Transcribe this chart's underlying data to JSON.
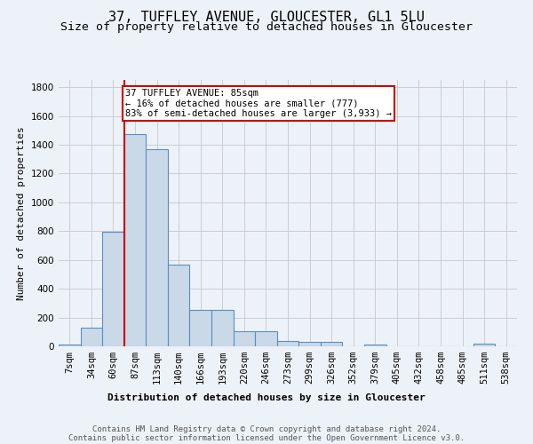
{
  "title": "37, TUFFLEY AVENUE, GLOUCESTER, GL1 5LU",
  "subtitle": "Size of property relative to detached houses in Gloucester",
  "xlabel": "Distribution of detached houses by size in Gloucester",
  "ylabel": "Number of detached properties",
  "bar_labels": [
    "7sqm",
    "34sqm",
    "60sqm",
    "87sqm",
    "113sqm",
    "140sqm",
    "166sqm",
    "193sqm",
    "220sqm",
    "246sqm",
    "273sqm",
    "299sqm",
    "326sqm",
    "352sqm",
    "379sqm",
    "405sqm",
    "432sqm",
    "458sqm",
    "485sqm",
    "511sqm",
    "538sqm"
  ],
  "bar_values": [
    10,
    130,
    795,
    1475,
    1370,
    570,
    250,
    250,
    105,
    105,
    35,
    30,
    30,
    0,
    15,
    0,
    0,
    0,
    0,
    20,
    0
  ],
  "bar_color": "#c9d9e8",
  "bar_edge_color": "#5a8fc2",
  "vline_color": "#cc0000",
  "annotation_text": "37 TUFFLEY AVENUE: 85sqm\n← 16% of detached houses are smaller (777)\n83% of semi-detached houses are larger (3,933) →",
  "annotation_box_color": "#cc0000",
  "ylim": [
    0,
    1850
  ],
  "yticks": [
    0,
    200,
    400,
    600,
    800,
    1000,
    1200,
    1400,
    1600,
    1800
  ],
  "footer_line1": "Contains HM Land Registry data © Crown copyright and database right 2024.",
  "footer_line2": "Contains public sector information licensed under the Open Government Licence v3.0.",
  "bg_color": "#edf2f8",
  "plot_bg_color": "#edf2f8",
  "grid_color": "#c8c8c8",
  "title_fontsize": 11,
  "subtitle_fontsize": 9.5,
  "axis_label_fontsize": 8,
  "tick_fontsize": 7.5,
  "annotation_fontsize": 7.5,
  "footer_fontsize": 6.5
}
